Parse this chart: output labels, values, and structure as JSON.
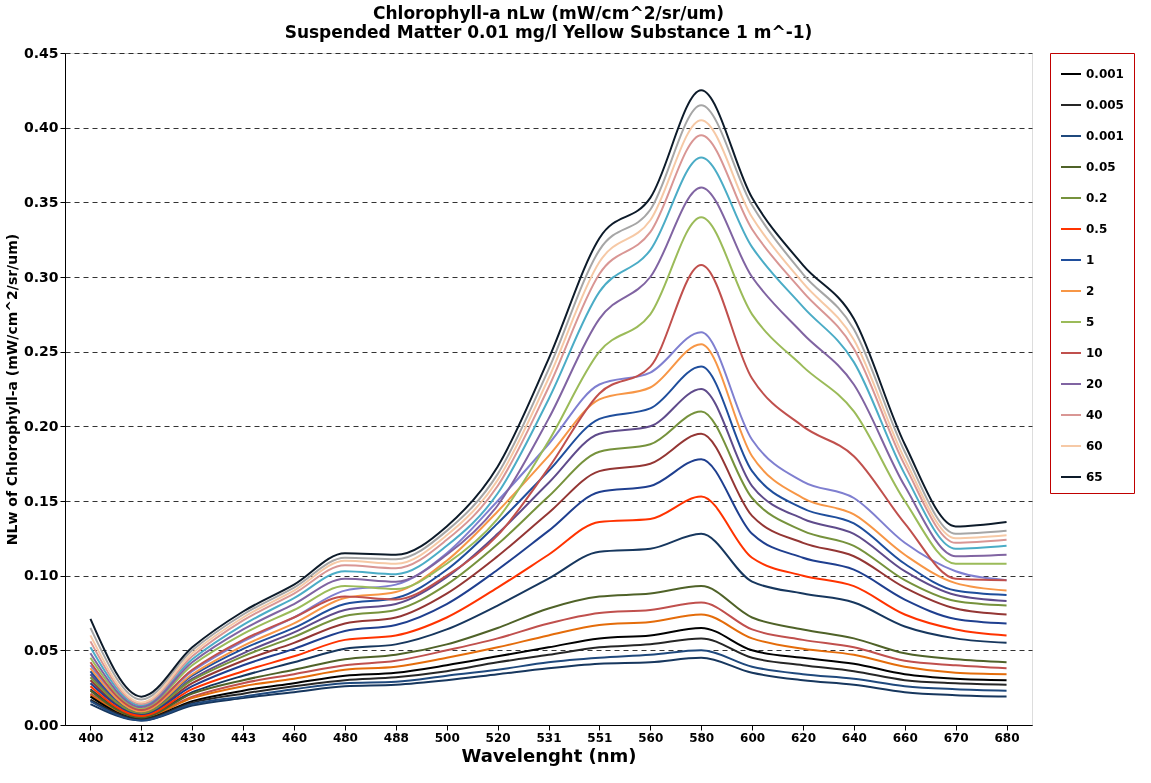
{
  "chart_data": {
    "type": "line",
    "title": [
      "Chlorophyll-a nLw (mW/cm^2/sr/um)",
      "Suspended Matter 0.01 mg/l  Yellow Substance 1 m^-1)"
    ],
    "xlabel": "Wavelenght (nm)",
    "ylabel": "NLw of Chlorophyll-a (mW/cm^2/sr/um)",
    "categories": [
      "400",
      "412",
      "430",
      "443",
      "460",
      "480",
      "488",
      "500",
      "520",
      "531",
      "551",
      "560",
      "580",
      "600",
      "620",
      "640",
      "660",
      "670",
      "680"
    ],
    "ylim": [
      0,
      0.45
    ],
    "yticks": [
      {
        "value": 0,
        "label": "0.00"
      },
      {
        "value": 0.05,
        "label": "0.05"
      },
      {
        "value": 0.1,
        "label": "0.10"
      },
      {
        "value": 0.15,
        "label": "0.15"
      },
      {
        "value": 0.2,
        "label": "0.20"
      },
      {
        "value": 0.25,
        "label": "0.25"
      },
      {
        "value": 0.3,
        "label": "0.30"
      },
      {
        "value": 0.35,
        "label": "0.35"
      },
      {
        "value": 0.4,
        "label": "0.40"
      },
      {
        "value": 0.45,
        "label": "0.45"
      }
    ],
    "grid": "y",
    "legend": "right",
    "marker": "none",
    "line_style": "solid",
    "series": [
      {
        "name": "0.001",
        "color": "#000000",
        "values": [
          0.019,
          0.004,
          0.016,
          0.023,
          0.028,
          0.033,
          0.035,
          0.04,
          0.046,
          0.052,
          0.058,
          0.06,
          0.065,
          0.05,
          0.045,
          0.041,
          0.034,
          0.031,
          0.03
        ]
      },
      {
        "name": "0.005",
        "color": "#262626",
        "values": [
          0.017,
          0.004,
          0.015,
          0.021,
          0.026,
          0.03,
          0.032,
          0.036,
          0.042,
          0.047,
          0.052,
          0.054,
          0.058,
          0.045,
          0.04,
          0.036,
          0.03,
          0.028,
          0.027
        ]
      },
      {
        "name": "0.001",
        "color": "#1f497d",
        "values": [
          0.016,
          0.003,
          0.014,
          0.019,
          0.024,
          0.028,
          0.029,
          0.033,
          0.037,
          0.042,
          0.045,
          0.047,
          0.05,
          0.039,
          0.034,
          0.031,
          0.026,
          0.024,
          0.023
        ]
      },
      {
        "name": "0.05",
        "color": "#4f6228",
        "values": [
          0.023,
          0.005,
          0.021,
          0.03,
          0.037,
          0.044,
          0.047,
          0.054,
          0.065,
          0.078,
          0.086,
          0.088,
          0.093,
          0.072,
          0.064,
          0.058,
          0.048,
          0.044,
          0.042
        ]
      },
      {
        "name": "0.2",
        "color": "#76923c",
        "values": [
          0.032,
          0.008,
          0.03,
          0.046,
          0.059,
          0.073,
          0.077,
          0.094,
          0.121,
          0.153,
          0.183,
          0.188,
          0.21,
          0.152,
          0.13,
          0.12,
          0.097,
          0.083,
          0.08
        ]
      },
      {
        "name": "0.5",
        "color": "#ff3300",
        "values": [
          0.026,
          0.006,
          0.024,
          0.036,
          0.046,
          0.057,
          0.06,
          0.072,
          0.092,
          0.114,
          0.136,
          0.138,
          0.153,
          0.112,
          0.1,
          0.093,
          0.074,
          0.064,
          0.06
        ]
      },
      {
        "name": "1",
        "color": "#1f4e9c",
        "values": [
          0.036,
          0.009,
          0.033,
          0.051,
          0.065,
          0.081,
          0.085,
          0.104,
          0.135,
          0.17,
          0.205,
          0.212,
          0.24,
          0.17,
          0.145,
          0.135,
          0.108,
          0.09,
          0.087
        ]
      },
      {
        "name": "2",
        "color": "#f79646",
        "values": [
          0.038,
          0.009,
          0.034,
          0.053,
          0.068,
          0.085,
          0.089,
          0.11,
          0.143,
          0.18,
          0.218,
          0.226,
          0.255,
          0.18,
          0.152,
          0.141,
          0.114,
          0.095,
          0.09
        ]
      },
      {
        "name": "5",
        "color": "#9bbb59",
        "values": [
          0.045,
          0.011,
          0.04,
          0.061,
          0.077,
          0.093,
          0.091,
          0.108,
          0.138,
          0.19,
          0.25,
          0.275,
          0.34,
          0.275,
          0.24,
          0.21,
          0.15,
          0.108,
          0.108
        ]
      },
      {
        "name": "10",
        "color": "#c0504d",
        "values": [
          0.042,
          0.01,
          0.037,
          0.057,
          0.072,
          0.086,
          0.084,
          0.1,
          0.127,
          0.172,
          0.222,
          0.24,
          0.308,
          0.232,
          0.2,
          0.18,
          0.135,
          0.098,
          0.097
        ]
      },
      {
        "name": "20",
        "color": "#8064a2",
        "values": [
          0.048,
          0.012,
          0.042,
          0.064,
          0.081,
          0.098,
          0.096,
          0.114,
          0.147,
          0.205,
          0.272,
          0.3,
          0.36,
          0.3,
          0.262,
          0.228,
          0.16,
          0.113,
          0.114
        ]
      },
      {
        "name": "40",
        "color": "#d99694",
        "values": [
          0.056,
          0.014,
          0.046,
          0.07,
          0.088,
          0.107,
          0.105,
          0.124,
          0.16,
          0.226,
          0.302,
          0.33,
          0.395,
          0.332,
          0.29,
          0.252,
          0.174,
          0.122,
          0.124
        ]
      },
      {
        "name": "60",
        "color": "#f6c9a6",
        "values": [
          0.06,
          0.015,
          0.048,
          0.072,
          0.09,
          0.11,
          0.108,
          0.127,
          0.164,
          0.232,
          0.31,
          0.338,
          0.405,
          0.34,
          0.296,
          0.258,
          0.178,
          0.125,
          0.127
        ]
      },
      {
        "name": "65",
        "color": "#0d1b2a",
        "values": [
          0.071,
          0.019,
          0.052,
          0.076,
          0.094,
          0.115,
          0.114,
          0.133,
          0.173,
          0.245,
          0.326,
          0.353,
          0.425,
          0.353,
          0.308,
          0.272,
          0.188,
          0.133,
          0.136
        ]
      },
      {
        "color": "#a6a6a6",
        "values": [
          0.065,
          0.017,
          0.05,
          0.074,
          0.092,
          0.112,
          0.111,
          0.13,
          0.168,
          0.238,
          0.318,
          0.345,
          0.415,
          0.348,
          0.302,
          0.265,
          0.183,
          0.128,
          0.13
        ]
      },
      {
        "color": "#4bacc6",
        "values": [
          0.052,
          0.013,
          0.044,
          0.067,
          0.085,
          0.103,
          0.101,
          0.12,
          0.155,
          0.218,
          0.29,
          0.318,
          0.38,
          0.32,
          0.28,
          0.243,
          0.168,
          0.118,
          0.12
        ]
      },
      {
        "color": "#7f7fd0",
        "values": [
          0.04,
          0.01,
          0.036,
          0.056,
          0.072,
          0.09,
          0.094,
          0.115,
          0.15,
          0.188,
          0.228,
          0.236,
          0.263,
          0.191,
          0.163,
          0.152,
          0.122,
          0.103,
          0.097
        ]
      },
      {
        "color": "#5f4b8b",
        "values": [
          0.034,
          0.008,
          0.031,
          0.048,
          0.062,
          0.077,
          0.081,
          0.099,
          0.128,
          0.162,
          0.195,
          0.2,
          0.225,
          0.16,
          0.138,
          0.128,
          0.103,
          0.087,
          0.083
        ]
      },
      {
        "color": "#943634",
        "values": [
          0.03,
          0.007,
          0.028,
          0.043,
          0.055,
          0.068,
          0.072,
          0.088,
          0.113,
          0.142,
          0.17,
          0.175,
          0.195,
          0.14,
          0.122,
          0.113,
          0.092,
          0.078,
          0.074
        ]
      },
      {
        "color": "#1f3f8f",
        "values": [
          0.028,
          0.007,
          0.026,
          0.04,
          0.051,
          0.063,
          0.067,
          0.081,
          0.104,
          0.13,
          0.156,
          0.16,
          0.178,
          0.128,
          0.112,
          0.104,
          0.084,
          0.071,
          0.068
        ]
      },
      {
        "color": "#17375e",
        "values": [
          0.024,
          0.006,
          0.022,
          0.033,
          0.042,
          0.051,
          0.054,
          0.064,
          0.08,
          0.098,
          0.116,
          0.118,
          0.128,
          0.096,
          0.088,
          0.082,
          0.066,
          0.058,
          0.055
        ]
      },
      {
        "color": "#c0504d",
        "values": [
          0.021,
          0.005,
          0.019,
          0.028,
          0.034,
          0.04,
          0.043,
          0.05,
          0.058,
          0.068,
          0.075,
          0.077,
          0.082,
          0.064,
          0.057,
          0.052,
          0.043,
          0.04,
          0.038
        ]
      },
      {
        "color": "#e46c0a",
        "values": [
          0.02,
          0.005,
          0.018,
          0.026,
          0.031,
          0.037,
          0.039,
          0.045,
          0.052,
          0.06,
          0.067,
          0.069,
          0.074,
          0.058,
          0.051,
          0.047,
          0.039,
          0.035,
          0.034
        ]
      },
      {
        "color": "#17375e",
        "values": [
          0.014,
          0.003,
          0.013,
          0.018,
          0.022,
          0.026,
          0.027,
          0.03,
          0.034,
          0.038,
          0.041,
          0.042,
          0.045,
          0.035,
          0.03,
          0.027,
          0.022,
          0.02,
          0.019
        ]
      }
    ]
  }
}
